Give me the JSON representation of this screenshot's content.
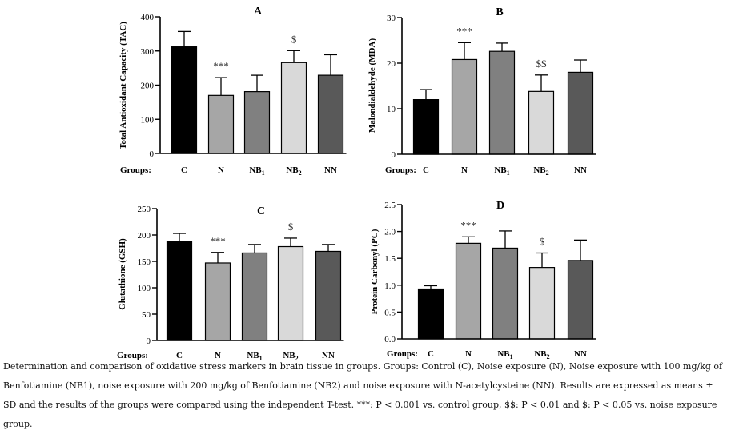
{
  "chart_data": [
    {
      "panel": "A",
      "type": "bar",
      "ylabel": "Total Antioxidant Capacity (TAC)",
      "ylim": [
        0,
        400
      ],
      "yticks": [
        "0",
        "100",
        "200",
        "300",
        "400"
      ],
      "xlabel": "Groups:",
      "categories": [
        {
          "main": "C",
          "sub": ""
        },
        {
          "main": "N",
          "sub": ""
        },
        {
          "main": "NB",
          "sub": "1"
        },
        {
          "main": "NB",
          "sub": "2"
        },
        {
          "main": "NN",
          "sub": ""
        }
      ],
      "values": [
        312,
        170,
        181,
        266,
        229
      ],
      "errors": [
        45,
        52,
        48,
        35,
        60
      ],
      "annotations": [
        "",
        "***",
        "",
        "$",
        ""
      ],
      "colors": [
        "#000000",
        "#a6a6a6",
        "#808080",
        "#d9d9d9",
        "#595959"
      ]
    },
    {
      "panel": "B",
      "type": "bar",
      "ylabel": "Malondialdehyde (MDA)",
      "ylim": [
        0,
        30
      ],
      "yticks": [
        "0",
        "10",
        "20",
        "30"
      ],
      "xlabel": "Groups:",
      "categories": [
        {
          "main": "C",
          "sub": ""
        },
        {
          "main": "N",
          "sub": ""
        },
        {
          "main": "NB",
          "sub": "1"
        },
        {
          "main": "NB",
          "sub": "2"
        },
        {
          "main": "NN",
          "sub": ""
        }
      ],
      "values": [
        12,
        20.8,
        22.6,
        13.8,
        18
      ],
      "errors": [
        2.2,
        3.7,
        1.8,
        3.6,
        2.7
      ],
      "annotations": [
        "",
        "***",
        "",
        "$$",
        ""
      ],
      "colors": [
        "#000000",
        "#a6a6a6",
        "#808080",
        "#d9d9d9",
        "#595959"
      ]
    },
    {
      "panel": "C",
      "type": "bar",
      "ylabel": "Glutathione (GSH)",
      "ylim": [
        0,
        250
      ],
      "yticks": [
        "0",
        "50",
        "100",
        "150",
        "200",
        "250"
      ],
      "xlabel": "Groups:",
      "categories": [
        {
          "main": "C",
          "sub": ""
        },
        {
          "main": "N",
          "sub": ""
        },
        {
          "main": "NB",
          "sub": "1"
        },
        {
          "main": "NB",
          "sub": "2"
        },
        {
          "main": "NN",
          "sub": ""
        }
      ],
      "values": [
        188,
        147,
        166,
        178,
        169
      ],
      "errors": [
        15,
        20,
        16,
        16,
        13
      ],
      "annotations": [
        "",
        "***",
        "",
        "$",
        ""
      ],
      "colors": [
        "#000000",
        "#a6a6a6",
        "#808080",
        "#d9d9d9",
        "#595959"
      ]
    },
    {
      "panel": "D",
      "type": "bar",
      "ylabel": "Protein Carbonyl (PC)",
      "ylim": [
        0,
        2.5
      ],
      "yticks": [
        "0.0",
        "0.5",
        "1.0",
        "1.5",
        "2.0",
        "2.5"
      ],
      "xlabel": "Groups:",
      "categories": [
        {
          "main": "C",
          "sub": ""
        },
        {
          "main": "N",
          "sub": ""
        },
        {
          "main": "NB",
          "sub": "1"
        },
        {
          "main": "NB",
          "sub": "2"
        },
        {
          "main": "NN",
          "sub": ""
        }
      ],
      "values": [
        0.93,
        1.78,
        1.69,
        1.33,
        1.46
      ],
      "errors": [
        0.06,
        0.12,
        0.32,
        0.27,
        0.38
      ],
      "annotations": [
        "",
        "***",
        "",
        "$",
        ""
      ],
      "colors": [
        "#000000",
        "#a6a6a6",
        "#808080",
        "#d9d9d9",
        "#595959"
      ]
    }
  ],
  "caption": "Determination and comparison of oxidative stress markers in brain tissue in groups. Groups: Control (C), Noise exposure (N), Noise exposure with 100 mg/kg of Benfotiamine (NB1), noise exposure with 200 mg/kg of Benfotiamine (NB2) and noise exposure with N-acetylcysteine (NN). Results are expressed as means ± SD and the results of the groups were compared using the independent T-test. ***: P < 0.001 vs. control group, $$: P < 0.01 and $: P < 0.05 vs. noise exposure group."
}
